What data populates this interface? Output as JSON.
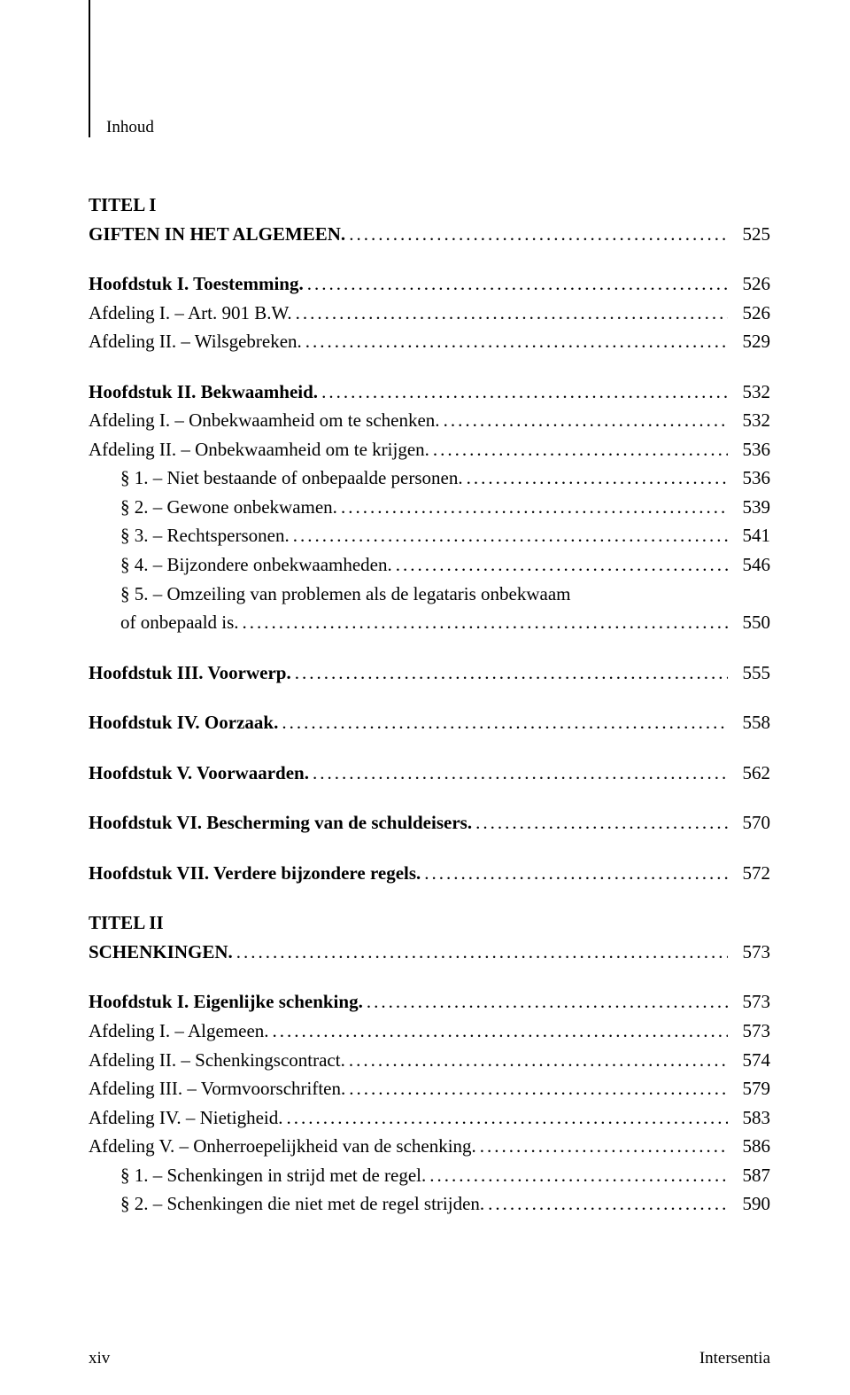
{
  "header": "Inhoud",
  "entries": [
    {
      "label": "TITEL I",
      "bold": true,
      "page": null,
      "nodots": true
    },
    {
      "label": "GIFTEN IN HET ALGEMEEN.",
      "bold": true,
      "page": "525"
    },
    {
      "spacer": true
    },
    {
      "label": "Hoofdstuk I. Toestemming.",
      "bold": true,
      "page": "526"
    },
    {
      "label": "Afdeling I. – Art. 901 B.W.",
      "page": "526"
    },
    {
      "label": "Afdeling II. – Wilsgebreken.",
      "page": "529"
    },
    {
      "spacer": true
    },
    {
      "label": "Hoofdstuk II. Bekwaamheid.",
      "bold": true,
      "page": "532"
    },
    {
      "label": "Afdeling I. – Onbekwaamheid om te schenken.",
      "page": "532"
    },
    {
      "label": "Afdeling II. – Onbekwaamheid om te krijgen.",
      "page": "536",
      "spacerAfter": true
    },
    {
      "label": "§ 1. – Niet bestaande of onbepaalde personen.",
      "page": "536",
      "indent": 1
    },
    {
      "label": "§ 2. – Gewone onbekwamen.",
      "page": "539",
      "indent": 1
    },
    {
      "label": "§ 3. – Rechtspersonen.",
      "page": "541",
      "indent": 1
    },
    {
      "label": "§ 4. – Bijzondere onbekwaamheden.",
      "page": "546",
      "indent": 1
    },
    {
      "label": "§ 5. – Omzeiling van problemen als de legataris onbekwaam",
      "page": null,
      "indent": 1,
      "nodots": true
    },
    {
      "label": "of onbepaald is.",
      "page": "550",
      "indent": 1
    },
    {
      "spacer": true
    },
    {
      "label": "Hoofdstuk III. Voorwerp.",
      "bold": true,
      "page": "555"
    },
    {
      "spacer": true
    },
    {
      "label": "Hoofdstuk IV. Oorzaak.",
      "bold": true,
      "page": "558"
    },
    {
      "spacer": true
    },
    {
      "label": "Hoofdstuk V. Voorwaarden.",
      "bold": true,
      "page": "562"
    },
    {
      "spacer": true
    },
    {
      "label": "Hoofdstuk VI. Bescherming van de schuldeisers.",
      "bold": true,
      "page": "570"
    },
    {
      "spacer": true
    },
    {
      "label": "Hoofdstuk VII. Verdere bijzondere regels.",
      "bold": true,
      "page": "572"
    },
    {
      "spacer": true
    },
    {
      "label": "TITEL II",
      "bold": true,
      "page": null,
      "nodots": true
    },
    {
      "label": "SCHENKINGEN.",
      "bold": true,
      "page": "573"
    },
    {
      "spacer": true
    },
    {
      "label": "Hoofdstuk I. Eigenlijke schenking.",
      "bold": true,
      "page": "573"
    },
    {
      "label": "Afdeling I. – Algemeen.",
      "page": "573"
    },
    {
      "label": "Afdeling II. – Schenkingscontract.",
      "page": "574"
    },
    {
      "label": "Afdeling III. – Vormvoorschriften.",
      "page": "579"
    },
    {
      "label": "Afdeling IV. – Nietigheid.",
      "page": "583"
    },
    {
      "label": "Afdeling V. – Onherroepelijkheid van de schenking.",
      "page": "586"
    },
    {
      "label": "§ 1. – Schenkingen in strijd met de regel.",
      "page": "587",
      "indent": 1
    },
    {
      "label": "§ 2. – Schenkingen die niet met de regel strijden.",
      "page": "590",
      "indent": 1
    }
  ],
  "footer": {
    "left": "xiv",
    "right": "Intersentia"
  }
}
